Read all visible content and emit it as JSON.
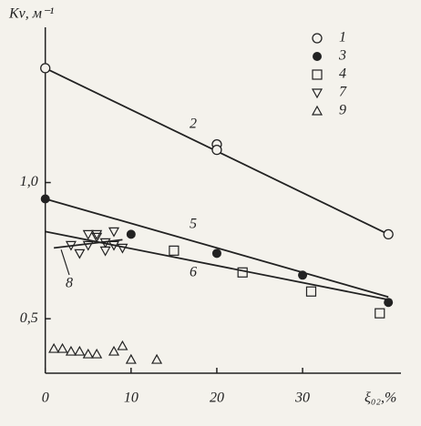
{
  "chart_data": {
    "type": "scatter",
    "y_label": "Kν, м⁻¹",
    "x_label": "ξ₀₂,%",
    "xlim": [
      -0.5,
      42
    ],
    "ylim": [
      0.3,
      1.57
    ],
    "xticks": [
      0,
      10,
      20,
      30
    ],
    "yticks": [
      {
        "value": 0.5,
        "label": "0,5"
      },
      {
        "value": 1.0,
        "label": "1,0"
      }
    ],
    "legend": "upper right",
    "series": [
      {
        "name": "1",
        "marker": "circle-open",
        "color": "#222222",
        "x": [
          0,
          20,
          20,
          40
        ],
        "values": [
          1.42,
          1.14,
          1.12,
          0.81
        ]
      },
      {
        "name": "3",
        "marker": "circle-filled",
        "color": "#222222",
        "x": [
          0,
          10,
          20,
          30,
          40
        ],
        "values": [
          0.94,
          0.81,
          0.74,
          0.66,
          0.56
        ]
      },
      {
        "name": "4",
        "marker": "square",
        "color": "#222222",
        "x": [
          15,
          23,
          31,
          39
        ],
        "values": [
          0.75,
          0.67,
          0.6,
          0.52
        ]
      },
      {
        "name": "7",
        "marker": "triangle-down",
        "color": "#222222",
        "x": [
          3,
          4,
          5,
          5,
          6,
          6,
          7,
          7,
          8,
          8,
          9
        ],
        "values": [
          0.77,
          0.74,
          0.81,
          0.77,
          0.8,
          0.81,
          0.78,
          0.75,
          0.77,
          0.82,
          0.76
        ]
      },
      {
        "name": "9",
        "marker": "triangle-up",
        "color": "#222222",
        "x": [
          1,
          2,
          3,
          4,
          5,
          6,
          8,
          9,
          10,
          13
        ],
        "values": [
          0.39,
          0.39,
          0.38,
          0.38,
          0.37,
          0.37,
          0.38,
          0.4,
          0.35,
          0.35
        ]
      }
    ],
    "lines": [
      {
        "label": "2",
        "x": [
          0,
          40
        ],
        "y": [
          1.42,
          0.81
        ]
      },
      {
        "label": "5",
        "x": [
          0,
          40
        ],
        "y": [
          0.94,
          0.58
        ]
      },
      {
        "label": "6",
        "x": [
          0,
          40
        ],
        "y": [
          0.82,
          0.57
        ]
      },
      {
        "label": "8",
        "x": [
          1,
          9
        ],
        "y": [
          0.76,
          0.79
        ]
      }
    ]
  }
}
